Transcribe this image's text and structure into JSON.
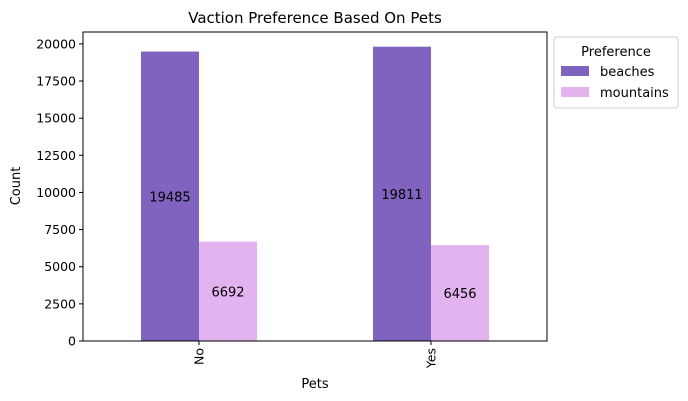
{
  "chart_data": {
    "type": "bar",
    "title": "Vaction Preference Based On Pets",
    "xlabel": "Pets",
    "ylabel": "Count",
    "categories": [
      "No",
      "Yes"
    ],
    "series": [
      {
        "name": "beaches",
        "values": [
          19485,
          19811
        ],
        "color": "#7f63be"
      },
      {
        "name": "mountains",
        "values": [
          6692,
          6456
        ],
        "color": "#e3b3f0"
      }
    ],
    "ylim": [
      0,
      20800
    ],
    "yticks": [
      "0",
      "2500",
      "5000",
      "7500",
      "10000",
      "12500",
      "15000",
      "17500",
      "20000"
    ],
    "grid": false,
    "legend": {
      "title": "Preference",
      "placement": "outside-top-right"
    }
  }
}
